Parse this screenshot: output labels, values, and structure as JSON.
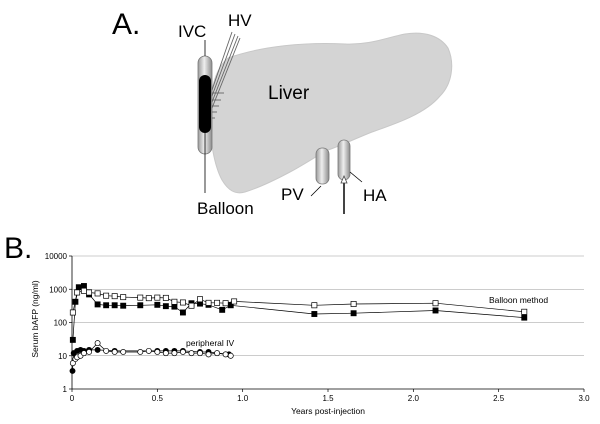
{
  "diagram": {
    "panel_label": "A.",
    "labels": {
      "ivc": "IVC",
      "hv": "HV",
      "liver": "Liver",
      "balloon": "Balloon",
      "pv": "PV",
      "ha": "HA"
    }
  },
  "chart_data": {
    "type": "scatter",
    "panel_label": "B.",
    "title": "",
    "xlabel": "Years post-injection",
    "ylabel": "Serum bAFP (ng/ml)",
    "xlim": [
      0,
      3.0
    ],
    "ylim": [
      1,
      10000
    ],
    "yscale": "log",
    "x_ticks": [
      "0",
      "0.5",
      "1.0",
      "1.5",
      "2.0",
      "2.5",
      "3.0"
    ],
    "y_ticks": [
      "1",
      "10",
      "100",
      "1000",
      "10000"
    ],
    "grid": "horizontal",
    "legend": "none",
    "series": [
      {
        "group": "Balloon method",
        "marker": "square-filled",
        "x": [
          0.005,
          0.02,
          0.04,
          0.07,
          0.1,
          0.15,
          0.2,
          0.25,
          0.3,
          0.4,
          0.5,
          0.55,
          0.6,
          0.65,
          0.7,
          0.75,
          0.8,
          0.88,
          0.93,
          1.42,
          1.65,
          2.13,
          2.65
        ],
        "y": [
          30,
          420,
          1150,
          1250,
          700,
          350,
          330,
          330,
          320,
          330,
          340,
          310,
          300,
          200,
          380,
          370,
          340,
          240,
          330,
          180,
          190,
          230,
          140
        ]
      },
      {
        "group": "Balloon method",
        "marker": "square-open",
        "x": [
          0.005,
          0.03,
          0.07,
          0.1,
          0.15,
          0.2,
          0.25,
          0.3,
          0.4,
          0.45,
          0.5,
          0.55,
          0.6,
          0.65,
          0.7,
          0.75,
          0.8,
          0.85,
          0.9,
          0.95,
          1.42,
          1.65,
          2.13,
          2.65
        ],
        "y": [
          200,
          800,
          900,
          800,
          750,
          640,
          620,
          580,
          560,
          540,
          560,
          550,
          420,
          400,
          320,
          500,
          390,
          390,
          380,
          430,
          330,
          360,
          380,
          210
        ]
      },
      {
        "group": "peripheral IV",
        "marker": "circle-filled",
        "x": [
          0.003,
          0.01,
          0.03,
          0.05,
          0.07,
          0.1,
          0.15,
          0.25,
          0.5,
          0.55,
          0.6,
          0.65,
          0.75,
          0.8,
          0.92
        ],
        "y": [
          3.5,
          12,
          14,
          15,
          14,
          15,
          15,
          14,
          14,
          14,
          14,
          14,
          13,
          13,
          11
        ]
      },
      {
        "group": "peripheral IV",
        "marker": "circle-open",
        "x": [
          0.005,
          0.02,
          0.03,
          0.05,
          0.07,
          0.1,
          0.15,
          0.2,
          0.25,
          0.3,
          0.4,
          0.45,
          0.5,
          0.55,
          0.6,
          0.65,
          0.7,
          0.75,
          0.8,
          0.85,
          0.9,
          0.93
        ],
        "y": [
          6,
          8,
          9,
          10,
          12,
          13,
          24,
          14,
          13,
          13,
          13,
          14,
          13,
          12,
          12,
          13,
          12,
          12,
          11,
          12,
          11,
          10
        ]
      }
    ],
    "annotations": [
      "Balloon method",
      "peripheral IV"
    ]
  }
}
